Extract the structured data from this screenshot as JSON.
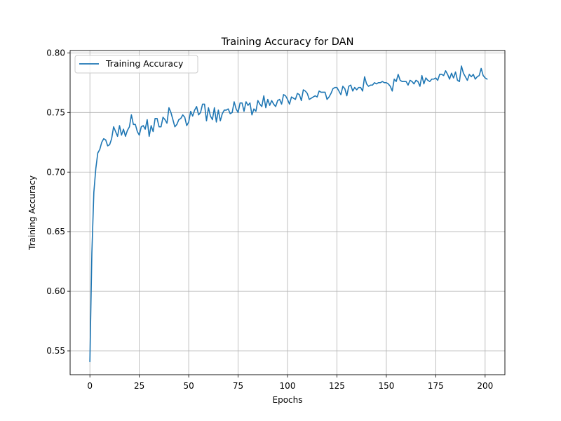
{
  "chart_data": {
    "type": "line",
    "title": "Training Accuracy for DAN",
    "xlabel": "Epochs",
    "ylabel": "Training Accuracy",
    "xlim": [
      -10,
      210
    ],
    "ylim": [
      0.53,
      0.802
    ],
    "xticks": [
      0,
      25,
      50,
      75,
      100,
      125,
      150,
      175,
      200
    ],
    "xtick_labels": [
      "0",
      "25",
      "50",
      "75",
      "100",
      "125",
      "150",
      "175",
      "200"
    ],
    "yticks": [
      0.55,
      0.6,
      0.65,
      0.7,
      0.75,
      0.8
    ],
    "ytick_labels": [
      "0.55",
      "0.60",
      "0.65",
      "0.70",
      "0.75",
      "0.80"
    ],
    "grid": true,
    "legend_position": "top-left",
    "series_color": "#1f77b4",
    "series": [
      {
        "name": "Training Accuracy",
        "x_start": 0,
        "x_step": 1,
        "values": [
          0.541,
          0.632,
          0.683,
          0.703,
          0.716,
          0.719,
          0.725,
          0.728,
          0.727,
          0.722,
          0.723,
          0.728,
          0.738,
          0.734,
          0.73,
          0.739,
          0.731,
          0.736,
          0.73,
          0.735,
          0.738,
          0.748,
          0.74,
          0.74,
          0.734,
          0.731,
          0.738,
          0.739,
          0.736,
          0.744,
          0.73,
          0.739,
          0.734,
          0.745,
          0.745,
          0.738,
          0.738,
          0.746,
          0.744,
          0.741,
          0.754,
          0.75,
          0.744,
          0.738,
          0.74,
          0.744,
          0.745,
          0.748,
          0.746,
          0.739,
          0.742,
          0.751,
          0.747,
          0.752,
          0.755,
          0.748,
          0.75,
          0.757,
          0.757,
          0.743,
          0.754,
          0.747,
          0.744,
          0.754,
          0.742,
          0.752,
          0.743,
          0.749,
          0.752,
          0.752,
          0.753,
          0.749,
          0.75,
          0.759,
          0.753,
          0.75,
          0.758,
          0.758,
          0.751,
          0.759,
          0.756,
          0.758,
          0.748,
          0.753,
          0.751,
          0.76,
          0.757,
          0.755,
          0.764,
          0.754,
          0.761,
          0.756,
          0.76,
          0.757,
          0.755,
          0.76,
          0.761,
          0.757,
          0.765,
          0.764,
          0.761,
          0.757,
          0.763,
          0.762,
          0.761,
          0.766,
          0.765,
          0.76,
          0.769,
          0.768,
          0.766,
          0.761,
          0.762,
          0.763,
          0.764,
          0.763,
          0.768,
          0.767,
          0.767,
          0.767,
          0.761,
          0.763,
          0.766,
          0.77,
          0.771,
          0.771,
          0.768,
          0.765,
          0.772,
          0.77,
          0.764,
          0.772,
          0.773,
          0.768,
          0.771,
          0.769,
          0.771,
          0.771,
          0.768,
          0.78,
          0.774,
          0.772,
          0.773,
          0.773,
          0.775,
          0.774,
          0.775,
          0.775,
          0.776,
          0.775,
          0.775,
          0.774,
          0.772,
          0.768,
          0.778,
          0.776,
          0.782,
          0.777,
          0.776,
          0.776,
          0.776,
          0.773,
          0.777,
          0.776,
          0.774,
          0.777,
          0.776,
          0.772,
          0.781,
          0.774,
          0.779,
          0.777,
          0.776,
          0.778,
          0.778,
          0.779,
          0.777,
          0.782,
          0.782,
          0.781,
          0.785,
          0.782,
          0.778,
          0.783,
          0.779,
          0.784,
          0.777,
          0.776,
          0.789,
          0.783,
          0.78,
          0.777,
          0.782,
          0.78,
          0.782,
          0.778,
          0.78,
          0.781,
          0.787,
          0.781,
          0.779,
          0.778
        ]
      }
    ]
  }
}
